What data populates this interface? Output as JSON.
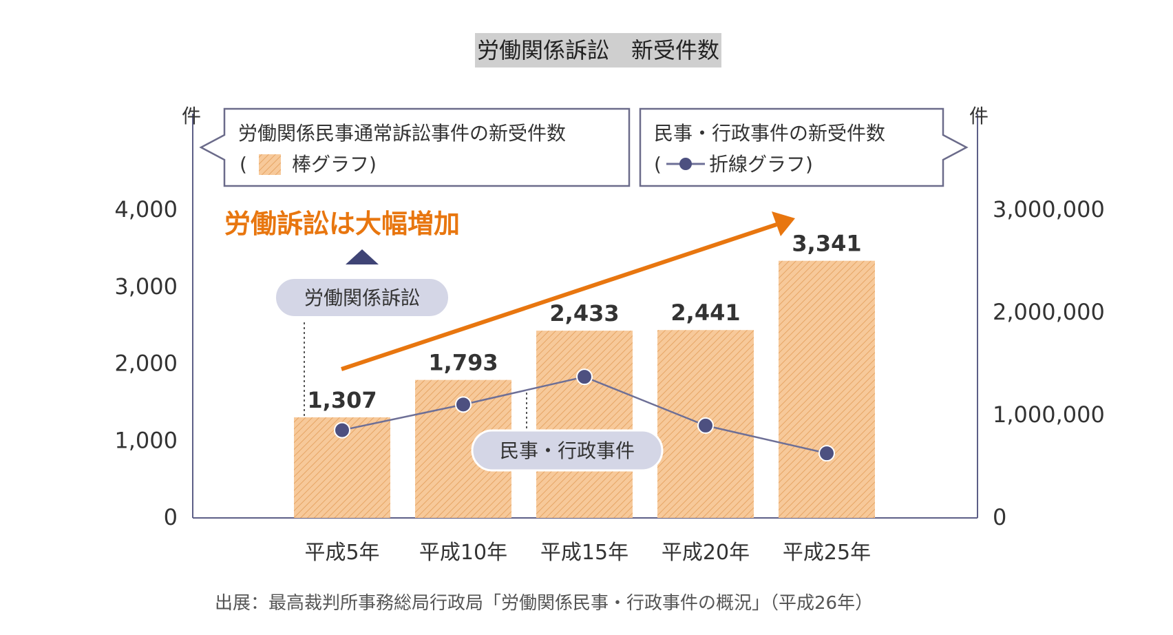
{
  "title": "労働関係訴訟　新受件数",
  "chart_data": {
    "type": "bar",
    "categories": [
      "平成5年",
      "平成10年",
      "平成15年",
      "平成20年",
      "平成25年"
    ],
    "series": [
      {
        "name": "労働関係民事通常訴訟事件の新受件数",
        "type": "bar",
        "axis": "left",
        "values": [
          1307,
          1793,
          2433,
          2441,
          3341
        ],
        "labels": [
          "1,307",
          "1,793",
          "2,433",
          "2,441",
          "3,341"
        ]
      },
      {
        "name": "民事・行政事件の新受件数",
        "type": "line",
        "axis": "right",
        "values": [
          855000,
          1105000,
          1375000,
          900000,
          630000
        ]
      }
    ],
    "y_left": {
      "unit": "件",
      "ylim": [
        0,
        4000
      ],
      "ticks": [
        0,
        1000,
        2000,
        3000,
        4000
      ],
      "tick_labels": [
        "0",
        "1,000",
        "2,000",
        "3,000",
        "4,000"
      ]
    },
    "y_right": {
      "unit": "件",
      "ylim": [
        0,
        3000000
      ],
      "ticks": [
        0,
        1000000,
        2000000,
        3000000
      ],
      "tick_labels": [
        "0",
        "1,000,000",
        "2,000,000",
        "3,000,000"
      ]
    },
    "legend": {
      "left_line1": "労働関係民事通常訴訟事件の新受件数",
      "left_open": "(",
      "left_line2": "棒グラフ)",
      "right_line1": "民事・行政事件の新受件数",
      "right_open": "(",
      "right_line2": "折線グラフ)"
    },
    "annotations": {
      "headline": "労働訴訟は大幅増加",
      "bar_callout": "労働関係訴訟",
      "line_callout": "民事・行政事件"
    },
    "source": "出展：最高裁判所事務総局行政局「労働関係民事・行政事件の概況」（平成26年）",
    "colors": {
      "bar": "#f7c99a",
      "bar_hatch": "#e6a565",
      "axis": "#5c5e86",
      "line": "#6d6f96",
      "marker": "#4d5080",
      "arrow": "#e8760f",
      "callout_bg": "#d4d6e6",
      "triangle": "#3f4475",
      "legend_border": "#6b6b8a"
    }
  }
}
